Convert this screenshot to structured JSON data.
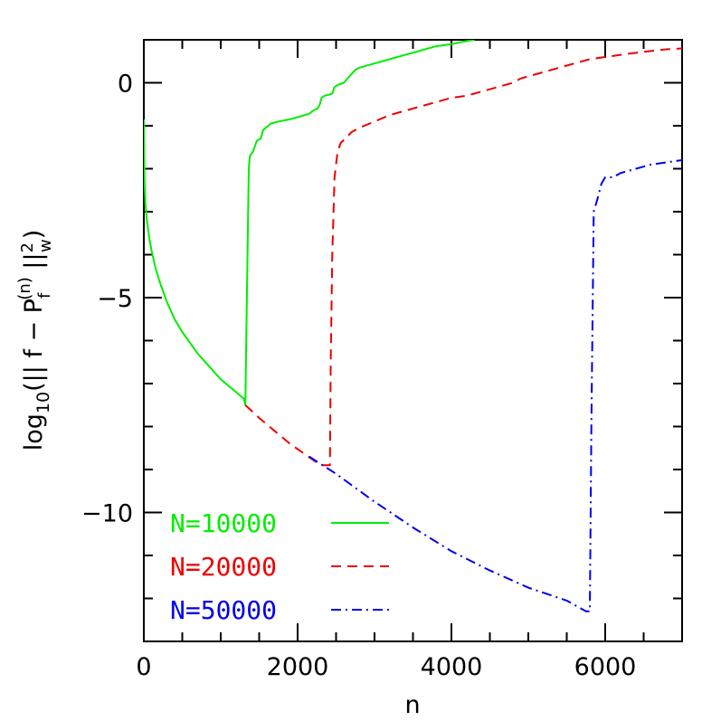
{
  "chart_data": {
    "type": "line",
    "xlabel": "n",
    "ylabel_parts": {
      "log": "log",
      "base": "10",
      "open": "(||  f  −  P",
      "sub": "f",
      "sup": "(n)",
      "close": "  ||",
      "norm_sup": "2",
      "norm_sub": "w",
      "end": ")"
    },
    "xlim": [
      0,
      7000
    ],
    "ylim": [
      -13,
      1
    ],
    "x_ticks": [
      0,
      2000,
      4000,
      6000
    ],
    "x_tick_labels": [
      "0",
      "2000",
      "4000",
      "6000"
    ],
    "y_ticks": [
      -10,
      -5,
      0
    ],
    "y_tick_labels": [
      "−10",
      "−5",
      "0"
    ],
    "grid": false,
    "legend_position": "bottom-left",
    "series": [
      {
        "name": "N=10000",
        "color": "#00ee00",
        "style": "solid",
        "points": [
          [
            1,
            -0.85
          ],
          [
            5,
            -1.6
          ],
          [
            10,
            -2.3
          ],
          [
            20,
            -2.8
          ],
          [
            40,
            -3.2
          ],
          [
            70,
            -3.6
          ],
          [
            100,
            -3.9
          ],
          [
            150,
            -4.3
          ],
          [
            200,
            -4.6
          ],
          [
            300,
            -5.1
          ],
          [
            400,
            -5.5
          ],
          [
            500,
            -5.8
          ],
          [
            600,
            -6.05
          ],
          [
            700,
            -6.3
          ],
          [
            800,
            -6.5
          ],
          [
            900,
            -6.7
          ],
          [
            1000,
            -6.9
          ],
          [
            1100,
            -7.05
          ],
          [
            1200,
            -7.2
          ],
          [
            1300,
            -7.35
          ],
          [
            1320,
            -7.5
          ],
          [
            1340,
            -5.0
          ],
          [
            1365,
            -2.0
          ],
          [
            1380,
            -1.7
          ],
          [
            1420,
            -1.6
          ],
          [
            1470,
            -1.35
          ],
          [
            1520,
            -1.3
          ],
          [
            1550,
            -1.1
          ],
          [
            1650,
            -0.95
          ],
          [
            1750,
            -0.9
          ],
          [
            1900,
            -0.85
          ],
          [
            2000,
            -0.8
          ],
          [
            2100,
            -0.75
          ],
          [
            2150,
            -0.72
          ],
          [
            2200,
            -0.65
          ],
          [
            2260,
            -0.6
          ],
          [
            2290,
            -0.5
          ],
          [
            2310,
            -0.35
          ],
          [
            2350,
            -0.3
          ],
          [
            2400,
            -0.28
          ],
          [
            2450,
            -0.25
          ],
          [
            2480,
            -0.1
          ],
          [
            2520,
            -0.05
          ],
          [
            2600,
            0.0
          ],
          [
            2700,
            0.2
          ],
          [
            2750,
            0.3
          ],
          [
            2800,
            0.35
          ],
          [
            3000,
            0.45
          ],
          [
            3200,
            0.55
          ],
          [
            3400,
            0.65
          ],
          [
            3600,
            0.75
          ],
          [
            3800,
            0.85
          ],
          [
            4000,
            0.9
          ],
          [
            4200,
            0.97
          ],
          [
            4300,
            1.0
          ]
        ]
      },
      {
        "name": "N=20000",
        "color": "#ee0000",
        "style": "dashed",
        "points": [
          [
            1320,
            -7.5
          ],
          [
            1500,
            -7.8
          ],
          [
            1700,
            -8.1
          ],
          [
            1900,
            -8.4
          ],
          [
            2100,
            -8.65
          ],
          [
            2300,
            -8.9
          ],
          [
            2420,
            -8.9
          ],
          [
            2430,
            -6.5
          ],
          [
            2450,
            -4.0
          ],
          [
            2480,
            -2.2
          ],
          [
            2520,
            -1.6
          ],
          [
            2560,
            -1.4
          ],
          [
            2620,
            -1.3
          ],
          [
            2700,
            -1.15
          ],
          [
            2800,
            -1.05
          ],
          [
            3000,
            -0.9
          ],
          [
            3200,
            -0.75
          ],
          [
            3400,
            -0.65
          ],
          [
            3600,
            -0.55
          ],
          [
            3800,
            -0.45
          ],
          [
            4000,
            -0.35
          ],
          [
            4200,
            -0.3
          ],
          [
            4400,
            -0.2
          ],
          [
            4600,
            -0.1
          ],
          [
            4800,
            0.0
          ],
          [
            4900,
            0.1
          ],
          [
            5000,
            0.15
          ],
          [
            5200,
            0.25
          ],
          [
            5500,
            0.4
          ],
          [
            5800,
            0.55
          ],
          [
            6000,
            0.6
          ],
          [
            6200,
            0.65
          ],
          [
            6500,
            0.72
          ],
          [
            6800,
            0.78
          ],
          [
            7000,
            0.8
          ]
        ]
      },
      {
        "name": "N=50000",
        "color": "#0000ee",
        "style": "dashdot",
        "points": [
          [
            2150,
            -8.7
          ],
          [
            2500,
            -9.1
          ],
          [
            3000,
            -9.75
          ],
          [
            3500,
            -10.35
          ],
          [
            4000,
            -10.9
          ],
          [
            4500,
            -11.35
          ],
          [
            5000,
            -11.75
          ],
          [
            5500,
            -12.05
          ],
          [
            5750,
            -12.3
          ],
          [
            5800,
            -12.3
          ],
          [
            5820,
            -8.0
          ],
          [
            5850,
            -3.0
          ],
          [
            5900,
            -2.7
          ],
          [
            5950,
            -2.35
          ],
          [
            6000,
            -2.2
          ],
          [
            6100,
            -2.2
          ],
          [
            6200,
            -2.1
          ],
          [
            6400,
            -2.0
          ],
          [
            6600,
            -1.9
          ],
          [
            6800,
            -1.85
          ],
          [
            7000,
            -1.8
          ]
        ]
      }
    ]
  }
}
